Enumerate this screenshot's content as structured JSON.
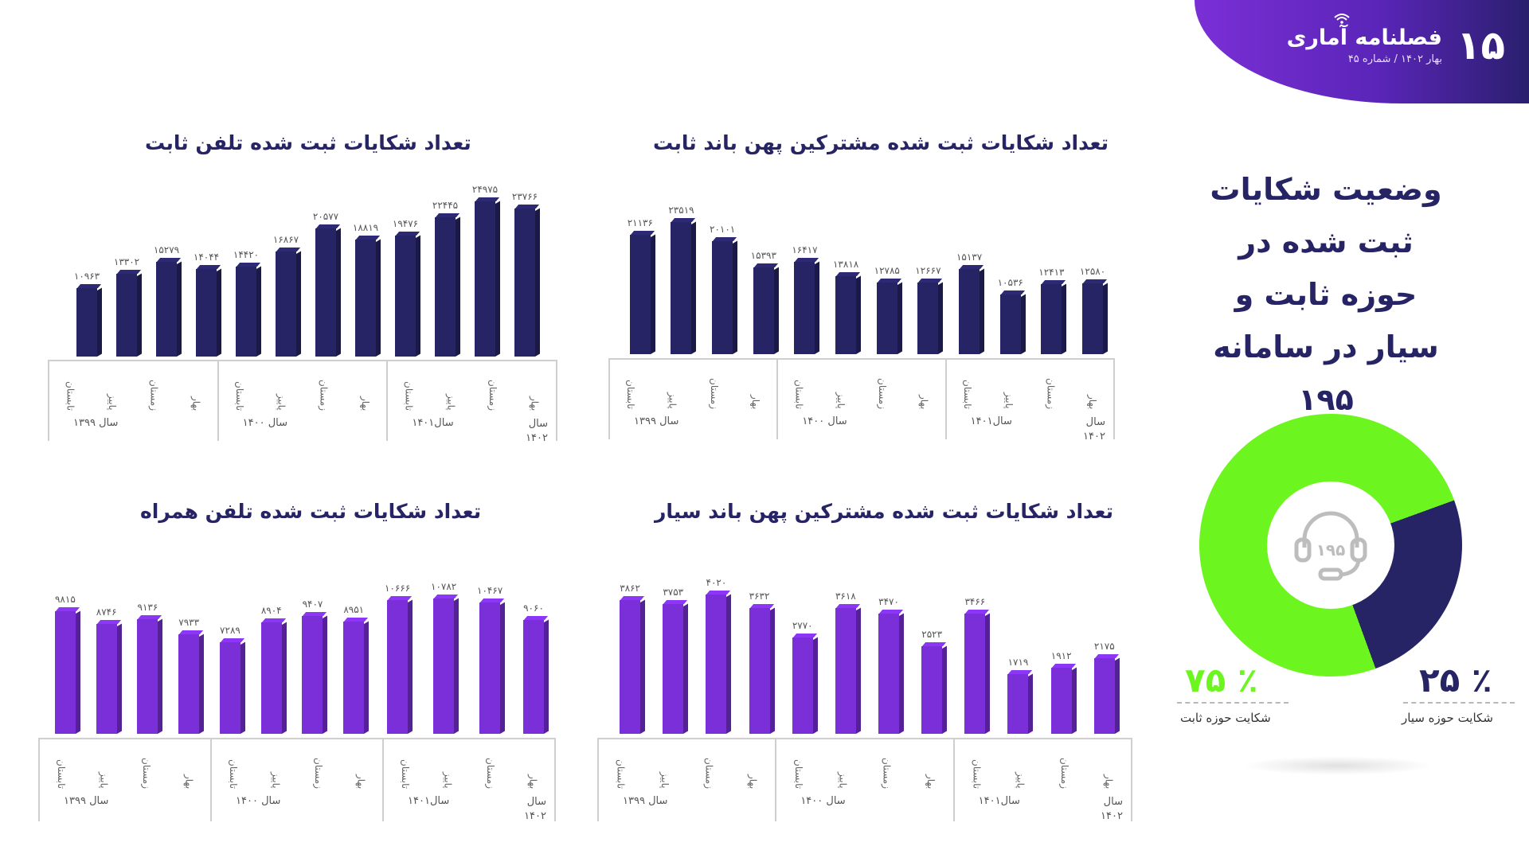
{
  "header": {
    "issue_number": "۱۵",
    "brand_name": "فصلنامه آماری",
    "subtitle": "بهار ۱۴۰۲ /  شماره ۴۵",
    "colors": {
      "gradient_start": "#7b2fd6",
      "gradient_end": "#2a1f6e"
    }
  },
  "main_title": "وضعیت شکایات ثبت شده در حوزه ثابت و سیار در سامانه ۱۹۵",
  "donut": {
    "icon": "headset-icon",
    "icon_text": "۱۹۵",
    "fixed": {
      "percent_label": "۷۵ ٪",
      "label": "شکایت حوزه ثابت",
      "color": "#6cf51e"
    },
    "mobile": {
      "percent_label": "۲۵ ٪",
      "label": "شکایت حوزه سیار",
      "color": "#272466"
    }
  },
  "seasons": [
    "تابستان",
    "پاییز",
    "زمستان",
    "بهار"
  ],
  "years": [
    "سال ۱۳۹۹",
    "سال ۱۴۰۰",
    "سال۱۴۰۱",
    "سال ۱۴۰۲"
  ],
  "charts": {
    "fixed_broadband": {
      "title": "تعداد شکایات ثبت شده مشترکین پهن باند ثابت",
      "labels": [
        "۲۱۱۳۶",
        "۲۳۵۱۹",
        "۲۰۱۰۱",
        "۱۵۳۹۳",
        "۱۶۴۱۷",
        "۱۳۸۱۸",
        "۱۲۷۸۵",
        "۱۲۶۶۷",
        "۱۵۱۳۷",
        "۱۰۵۳۶",
        "۱۲۴۱۳",
        "۱۲۵۸۰"
      ]
    },
    "fixed_phone": {
      "title": "تعداد شکایات ثبت شده تلفن ثابت",
      "labels": [
        "۱۰۹۶۳",
        "۱۳۳۰۲",
        "۱۵۲۷۹",
        "۱۴۰۴۴",
        "۱۴۴۲۰",
        "۱۶۸۶۷",
        "۲۰۵۷۷",
        "۱۸۸۱۹",
        "۱۹۴۷۶",
        "۲۲۴۴۵",
        "۲۴۹۷۵",
        "۲۳۷۶۶"
      ]
    },
    "mobile_broadband": {
      "title": "تعداد شکایات ثبت شده مشترکین پهن باند سیار",
      "labels": [
        "۳۸۶۲",
        "۳۷۵۳",
        "۴۰۲۰",
        "۳۶۳۲",
        "۲۷۷۰",
        "۳۶۱۸",
        "۳۴۷۰",
        "۲۵۲۳",
        "۳۴۶۶",
        "۱۷۱۹",
        "۱۹۱۲",
        "۲۱۷۵"
      ]
    },
    "mobile_phone": {
      "title": "تعداد شکایات ثبت شده تلفن همراه",
      "labels": [
        "۹۸۱۵",
        "۸۷۴۶",
        "۹۱۳۶",
        "۷۹۳۳",
        "۷۲۸۹",
        "۸۹۰۴",
        "۹۴۰۷",
        "۸۹۵۱",
        "۱۰۶۶۶",
        "۱۰۷۸۲",
        "۱۰۴۶۷",
        "۹۰۶۰"
      ]
    }
  },
  "chart_data": [
    {
      "type": "bar",
      "title": "تعداد شکایات ثبت شده مشترکین پهن باند ثابت",
      "categories": [
        "1399 تابستان",
        "1399 پاییز",
        "1399 زمستان",
        "1400 بهار",
        "1400 تابستان",
        "1400 پاییز",
        "1400 زمستان",
        "1401 بهار",
        "1401 تابستان",
        "1401 پاییز",
        "1401 زمستان",
        "1402 بهار"
      ],
      "values": [
        21136,
        23519,
        20101,
        15393,
        16417,
        13818,
        12785,
        12667,
        15137,
        10536,
        12413,
        12580
      ],
      "color": "#272466",
      "xlabel": "",
      "ylabel": "",
      "grid": false
    },
    {
      "type": "bar",
      "title": "تعداد شکایات ثبت شده تلفن ثابت",
      "categories": [
        "1399 تابستان",
        "1399 پاییز",
        "1399 زمستان",
        "1400 بهار",
        "1400 تابستان",
        "1400 پاییز",
        "1400 زمستان",
        "1401 بهار",
        "1401 تابستان",
        "1401 پاییز",
        "1401 زمستان",
        "1402 بهار"
      ],
      "values": [
        10963,
        13302,
        15279,
        14044,
        14420,
        16867,
        20577,
        18819,
        19476,
        22445,
        24975,
        23766
      ],
      "color": "#272466",
      "xlabel": "",
      "ylabel": "",
      "grid": false
    },
    {
      "type": "bar",
      "title": "تعداد شکایات ثبت شده مشترکین پهن باند سیار",
      "categories": [
        "1399 تابستان",
        "1399 پاییز",
        "1399 زمستان",
        "1400 بهار",
        "1400 تابستان",
        "1400 پاییز",
        "1400 زمستان",
        "1401 بهار",
        "1401 تابستان",
        "1401 پاییز",
        "1401 زمستان",
        "1402 بهار"
      ],
      "values": [
        3862,
        3753,
        4020,
        3632,
        2770,
        3618,
        3470,
        2523,
        3466,
        1719,
        1912,
        2175
      ],
      "color": "#7a2fd8",
      "xlabel": "",
      "ylabel": "",
      "grid": false
    },
    {
      "type": "bar",
      "title": "تعداد شکایات ثبت شده تلفن همراه",
      "categories": [
        "1399 تابستان",
        "1399 پاییز",
        "1399 زمستان",
        "1400 بهار",
        "1400 تابستان",
        "1400 پاییز",
        "1400 زمستان",
        "1401 بهار",
        "1401 تابستان",
        "1401 پاییز",
        "1401 زمستان",
        "1402 بهار"
      ],
      "values": [
        9815,
        8746,
        9136,
        7933,
        7289,
        8904,
        9407,
        8951,
        10666,
        10782,
        10467,
        9060
      ],
      "color": "#7a2fd8",
      "xlabel": "",
      "ylabel": "",
      "grid": false
    },
    {
      "type": "pie",
      "title": "وضعیت شکایات ثبت شده در حوزه ثابت و سیار در سامانه ۱۹۵",
      "categories": [
        "شکایت حوزه ثابت",
        "شکایت حوزه سیار"
      ],
      "values": [
        75,
        25
      ],
      "colors": [
        "#6cf51e",
        "#272466"
      ],
      "donut": true
    }
  ]
}
